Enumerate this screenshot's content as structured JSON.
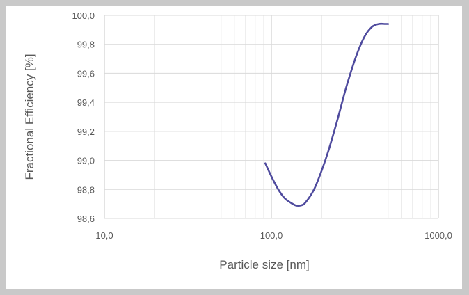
{
  "chart_data": {
    "type": "line",
    "title": "",
    "xlabel": "Particle size [nm]",
    "ylabel": "Fractional Efficiency [%]",
    "x_scale": "log",
    "xlim": [
      10,
      1000
    ],
    "ylim": [
      98.6,
      100.0
    ],
    "x_ticks": [
      10,
      100,
      1000
    ],
    "x_tick_labels": [
      "10,0",
      "100,0",
      "1000,0"
    ],
    "y_ticks": [
      98.6,
      98.8,
      99.0,
      99.2,
      99.4,
      99.6,
      99.8,
      100.0
    ],
    "y_tick_labels": [
      "98,6",
      "98,8",
      "99,0",
      "99,2",
      "99,4",
      "99,6",
      "99,8",
      "100,0"
    ],
    "grid": "major and minor (log x)",
    "legend": "none",
    "series": [
      {
        "color": "#4f4b9e",
        "x": [
          92,
          100,
          110,
          120,
          130,
          140,
          150,
          160,
          180,
          200,
          220,
          250,
          280,
          320,
          360,
          400,
          440,
          480,
          500
        ],
        "y": [
          98.98,
          98.89,
          98.8,
          98.74,
          98.71,
          98.69,
          98.69,
          98.71,
          98.8,
          98.93,
          99.07,
          99.29,
          99.5,
          99.71,
          99.85,
          99.92,
          99.94,
          99.94,
          99.94
        ]
      }
    ]
  }
}
